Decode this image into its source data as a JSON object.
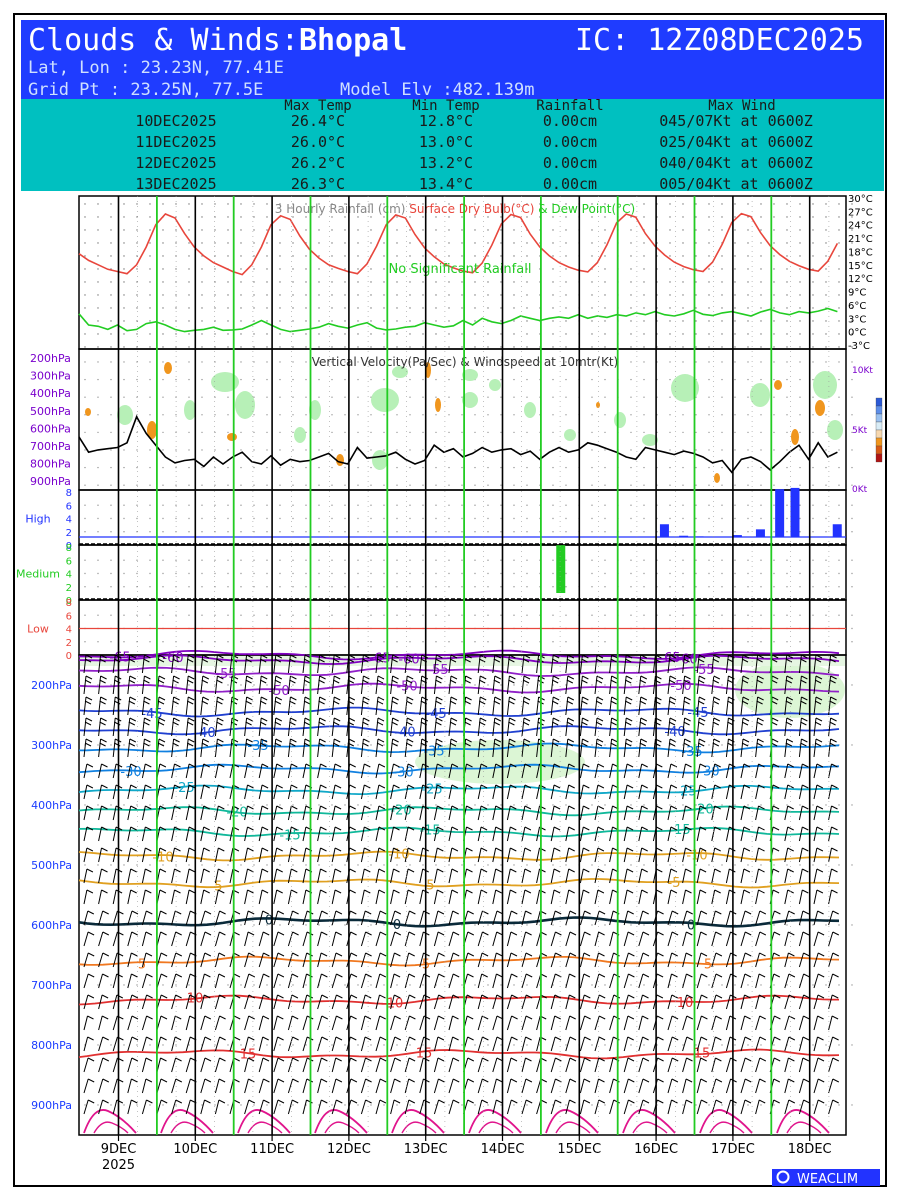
{
  "header": {
    "title_prefix": "Clouds & Winds:",
    "city": "Bhopal",
    "ic": "IC: 12Z08DEC2025",
    "latlon": "Lat, Lon : 23.23N, 77.41E",
    "gridpt": "Grid Pt  : 23.25N, 77.5E",
    "elev": "Model Elv :482.139m",
    "bg_color": "#1f3cff"
  },
  "summary": {
    "bg_color": "#00c0c0",
    "headers": [
      "Max Temp",
      "Min Temp",
      "Rainfall",
      "Max Wind"
    ],
    "rows": [
      {
        "date": "10DEC2025",
        "max": "26.4°C",
        "min": "12.8°C",
        "rain": "0.00cm",
        "wind": "045/07Kt at 0600Z"
      },
      {
        "date": "11DEC2025",
        "max": "26.0°C",
        "min": "13.0°C",
        "rain": "0.00cm",
        "wind": "025/04Kt at 0600Z"
      },
      {
        "date": "12DEC2025",
        "max": "26.2°C",
        "min": "13.2°C",
        "rain": "0.00cm",
        "wind": "040/04Kt at 0600Z"
      },
      {
        "date": "13DEC2025",
        "max": "26.3°C",
        "min": "13.4°C",
        "rain": "0.00cm",
        "wind": "005/04Kt at 0600Z"
      }
    ]
  },
  "panel1": {
    "title_rain": "3 Hourly Rainfall (cm)",
    "title_dry": "Surface Dry Bulb(°C)",
    "title_dew": "& Dew Point(°C)",
    "note": "No Significant Rainfall",
    "yticks": [
      "30°C",
      "27°C",
      "24°C",
      "21°C",
      "18°C",
      "15°C",
      "12°C",
      "9°C",
      "6°C",
      "3°C",
      "0°C",
      "-3°C"
    ]
  },
  "panel2": {
    "title": "Vertical Velocity(Pa/Sec) & Windspeed at 10mtr(Kt)",
    "left_ticks": [
      "200hPa",
      "300hPa",
      "400hPa",
      "500hPa",
      "600hPa",
      "700hPa",
      "800hPa",
      "900hPa"
    ],
    "right_ticks": [
      "10Kt",
      "5Kt",
      "0Kt"
    ]
  },
  "clouds": {
    "high_label": "High",
    "medium_label": "Medium",
    "low_label": "Low",
    "ticks": [
      "8",
      "6",
      "4",
      "2",
      "0"
    ]
  },
  "panel4": {
    "left_ticks": [
      "200hPa",
      "300hPa",
      "400hPa",
      "500hPa",
      "600hPa",
      "700hPa",
      "800hPa",
      "900hPa"
    ],
    "contour_labels": [
      "-65",
      "-60",
      "-55",
      "-50",
      "-45",
      "-40",
      "-35",
      "-30",
      "-25",
      "-20",
      "-15",
      "-10",
      "-5",
      "0",
      "5",
      "10",
      "15"
    ]
  },
  "xaxis": {
    "labels": [
      "9DEC",
      "10DEC",
      "11DEC",
      "12DEC",
      "13DEC",
      "14DEC",
      "15DEC",
      "16DEC",
      "17DEC",
      "18DEC"
    ],
    "year": "2025"
  },
  "chart_data": [
    {
      "type": "line",
      "title": "3 Hourly Rainfall (cm) Surface Dry Bulb(°C) & Dew Point(°C)",
      "ylim": [
        -3,
        30
      ],
      "x_start": "2025-12-08T12:00Z",
      "x_step_hours": 3,
      "series": [
        {
          "name": "Surface Dry Bulb(°C)",
          "color": "#e8463c",
          "values": [
            17.5,
            16,
            15,
            14,
            13.5,
            13,
            15,
            19,
            24,
            26.4,
            25.5,
            22,
            19,
            17,
            15.5,
            14.5,
            13.5,
            12.8,
            15,
            19,
            24,
            26,
            25.2,
            21.5,
            18.5,
            16.5,
            15,
            14.2,
            13.5,
            13,
            15.2,
            19.2,
            24,
            26.2,
            25.5,
            21.8,
            18.8,
            16.8,
            15.2,
            14.3,
            13.6,
            13.2,
            15.4,
            19.4,
            24.2,
            26.3,
            25.6,
            21.9,
            19,
            17,
            15.5,
            14.5,
            13.8,
            13.4,
            15.5,
            19.5,
            24.4,
            26.4,
            25.7,
            22,
            19.2,
            17.2,
            15.6,
            14.6,
            13.9,
            13.5,
            15.6,
            19.6,
            24.5,
            26.5,
            25.8,
            22.2,
            19.3,
            17.3,
            15.8,
            14.8,
            14,
            13.6,
            15.8,
            19.8,
            24.6,
            26.5,
            25.8,
            22.4,
            19.5
          ]
        },
        {
          "name": "Dew Point(°C)",
          "color": "#22cc22",
          "values": [
            4,
            1.5,
            1.2,
            0.5,
            1.5,
            0.2,
            0.5,
            1.8,
            2.2,
            1.5,
            0.5,
            0,
            0.3,
            0.5,
            1,
            0.3,
            0.4,
            0.6,
            1.5,
            2.5,
            1.5,
            0.5,
            0,
            0.3,
            0.6,
            1,
            1.8,
            1.2,
            0.8,
            1.5,
            2,
            0.8,
            0.4,
            0.6,
            1,
            1.2,
            2,
            1.5,
            1,
            1.3,
            2.5,
            1.5,
            3,
            2.2,
            1.8,
            2.5,
            3.5,
            3,
            2.5,
            3,
            3.3,
            3,
            3.8,
            3,
            3.5,
            3.2,
            3.8,
            3.5,
            4.2,
            3.8,
            4.5,
            3.8,
            3.5,
            4,
            4.8,
            3.9,
            3.6,
            4.2,
            4.5,
            4,
            3.5,
            4.4,
            5,
            4.2,
            3.8,
            4.5,
            4.2,
            4.6,
            5.2,
            4.5,
            4.8,
            4.2,
            4.6,
            5.4,
            4.8
          ]
        }
      ],
      "annotations": [
        "No Significant Rainfall"
      ]
    },
    {
      "type": "line",
      "title": "Vertical Velocity(Pa/Sec) & Windspeed at 10mtr(Kt)",
      "ylim": [
        0,
        10
      ],
      "series": [
        {
          "name": "Windspeed at 10mtr(Kt)",
          "color": "#000000",
          "values": [
            4.5,
            3.2,
            3.4,
            3.5,
            3.6,
            4,
            6.2,
            4.8,
            3.8,
            2.8,
            2.3,
            2.5,
            2.6,
            2,
            2.8,
            2.2,
            2.8,
            3.2,
            2.4,
            2.2,
            2.9,
            2.1,
            2.6,
            2.4,
            2.5,
            2.8,
            3.1,
            2.4,
            2.2,
            3.6,
            2.7,
            2.8,
            2.9,
            3.2,
            2.6,
            2.2,
            2.5,
            3.8,
            3.2,
            3.5,
            2.8,
            3.1,
            3.6,
            3.2,
            3.4,
            3.5,
            3,
            3.3,
            2.6,
            3.2,
            3.6,
            3.2,
            3.4,
            4,
            3.8,
            3.5,
            3.2,
            2.8,
            2.6,
            3.6,
            3.4,
            3.2,
            3,
            3.3,
            3.1,
            2.8,
            2.3,
            2.5,
            1.5,
            2.6,
            2.8,
            2.4,
            1.7,
            2.4,
            3.2,
            3.8,
            2.6,
            4,
            2.8,
            3.2,
            2.3,
            3.2,
            3.6
          ]
        }
      ]
    },
    {
      "type": "bar",
      "title": "Cloud cover High",
      "ylim": [
        0,
        8
      ],
      "bars": [
        {
          "day_offset": 8.05,
          "value": 2
        },
        {
          "day_offset": 8.3,
          "value": 0.2
        },
        {
          "day_offset": 8.5,
          "value": 0.1
        },
        {
          "day_offset": 9.0,
          "value": 0.3
        },
        {
          "day_offset": 9.3,
          "value": 1.2
        },
        {
          "day_offset": 9.55,
          "value": 7.5
        },
        {
          "day_offset": 9.75,
          "value": 7.7
        },
        {
          "day_offset": 10.3,
          "value": 2
        }
      ]
    },
    {
      "type": "bar",
      "title": "Cloud cover Medium",
      "ylim": [
        0,
        8
      ],
      "bars": [
        {
          "day_offset": 6.7,
          "value": 7.5
        }
      ]
    },
    {
      "type": "line",
      "title": "Cloud cover Low",
      "ylim": [
        0,
        8
      ],
      "series": [
        {
          "name": "Low",
          "color": "#e8463c",
          "values": [
            4
          ]
        }
      ]
    },
    {
      "type": "line",
      "title": "Temperature (°C) and winds vs pressure",
      "ylim": [
        950,
        150
      ],
      "contours": [
        {
          "level": -65,
          "pressure_hPa": 150
        },
        {
          "level": -60,
          "pressure_hPa": 158
        },
        {
          "level": -55,
          "pressure_hPa": 178
        },
        {
          "level": -50,
          "pressure_hPa": 205
        },
        {
          "level": -45,
          "pressure_hPa": 245
        },
        {
          "level": -40,
          "pressure_hPa": 275
        },
        {
          "level": -35,
          "pressure_hPa": 305
        },
        {
          "level": -30,
          "pressure_hPa": 340
        },
        {
          "level": -25,
          "pressure_hPa": 375
        },
        {
          "level": -20,
          "pressure_hPa": 410
        },
        {
          "level": -15,
          "pressure_hPa": 445
        },
        {
          "level": -10,
          "pressure_hPa": 485
        },
        {
          "level": -5,
          "pressure_hPa": 530
        },
        {
          "level": 0,
          "pressure_hPa": 595
        },
        {
          "level": 5,
          "pressure_hPa": 660
        },
        {
          "level": 10,
          "pressure_hPa": 725
        },
        {
          "level": 15,
          "pressure_hPa": 815
        }
      ]
    }
  ],
  "footer": {
    "brand": "WEACLIM",
    "brand_color": "#2233ff"
  }
}
